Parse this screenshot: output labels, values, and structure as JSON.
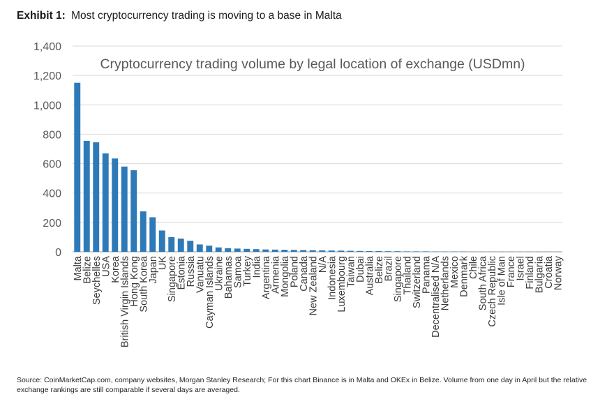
{
  "exhibit": {
    "label": "Exhibit 1:",
    "title": "Most cryptocurrency trading is moving to a base in Malta"
  },
  "source": "Source: CoinMarketCap.com, company websites, Morgan Stanley Research; For this chart Binance is in Malta and OKEx in Belize. Volume from one day in April but the relative exchange rankings are still comparable if several days are averaged.",
  "chart_data": {
    "type": "bar",
    "title": "Cryptocurrency trading volume by legal location of exchange (USDmn)",
    "xlabel": "",
    "ylabel": "",
    "ylim": [
      0,
      1400
    ],
    "yticks": [
      0,
      200,
      400,
      600,
      800,
      1000,
      1200,
      1400
    ],
    "grid": true,
    "bar_color": "#2e7ab8",
    "categories": [
      "Malta",
      "Belize",
      "Seychelles",
      "USA",
      "Korea",
      "British Virgin Islands",
      "Hong Kong",
      "South Korea",
      "Japan",
      "UK",
      "Singapore",
      "Estonia",
      "Russia",
      "Vanuatu",
      "Cayman Islands",
      "Ukraine",
      "Bahamas",
      "Samoa",
      "Turkey",
      "India",
      "Argentina",
      "Armenia",
      "Mongolia",
      "Poland",
      "Canada",
      "New Zealand",
      "N/A",
      "Indonesia",
      "Luxembourg",
      "Taiwan",
      "Dubai",
      "Australia",
      "Belize",
      "Brazil",
      "Singapore",
      "Thailand",
      "Switzerland",
      "Panama",
      "Decentralised N/A",
      "Netherlands",
      "Mexico",
      "Denmark",
      "Chile",
      "South Africa",
      "Czech Republic",
      "Isle of Man",
      "France",
      "Israel",
      "Finland",
      "Bulgaria",
      "Croatia",
      "Norway"
    ],
    "values": [
      1150,
      755,
      745,
      670,
      635,
      580,
      555,
      275,
      235,
      145,
      100,
      90,
      75,
      50,
      42,
      30,
      25,
      22,
      20,
      18,
      16,
      15,
      14,
      13,
      12,
      11,
      10,
      9,
      8,
      7,
      6,
      5,
      5,
      4,
      4,
      3,
      3,
      3,
      2,
      2,
      2,
      2,
      1,
      1,
      1,
      1,
      1,
      1,
      1,
      1,
      1,
      1
    ]
  }
}
